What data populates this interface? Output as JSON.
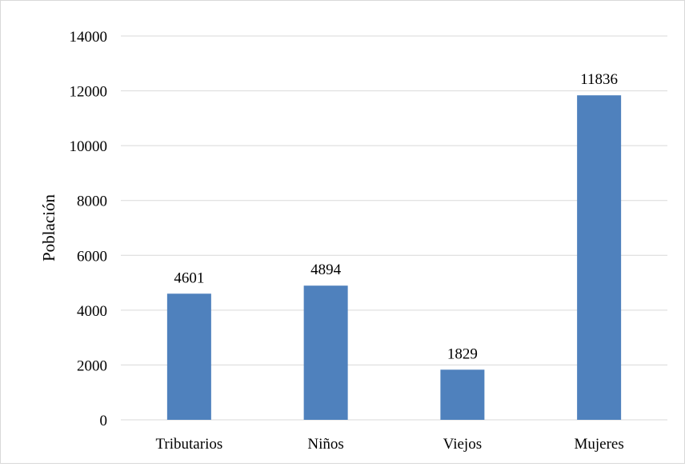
{
  "chart_data": {
    "type": "bar",
    "categories": [
      "Tributarios",
      "Niños",
      "Viejos",
      "Mujeres"
    ],
    "values": [
      4601,
      4894,
      1829,
      11836
    ],
    "data_labels": [
      "4601",
      "4894",
      "1829",
      "11836"
    ],
    "title": "",
    "xlabel": "",
    "ylabel": "Población",
    "ylim": [
      0,
      14000
    ],
    "yticks": [
      0,
      2000,
      4000,
      6000,
      8000,
      10000,
      12000,
      14000
    ],
    "ytick_labels": [
      "0",
      "2000",
      "4000",
      "6000",
      "8000",
      "10000",
      "12000",
      "14000"
    ],
    "grid": true,
    "legend": "none",
    "bar_color": "#4f81bd",
    "grid_color": "#d9d9d9"
  }
}
